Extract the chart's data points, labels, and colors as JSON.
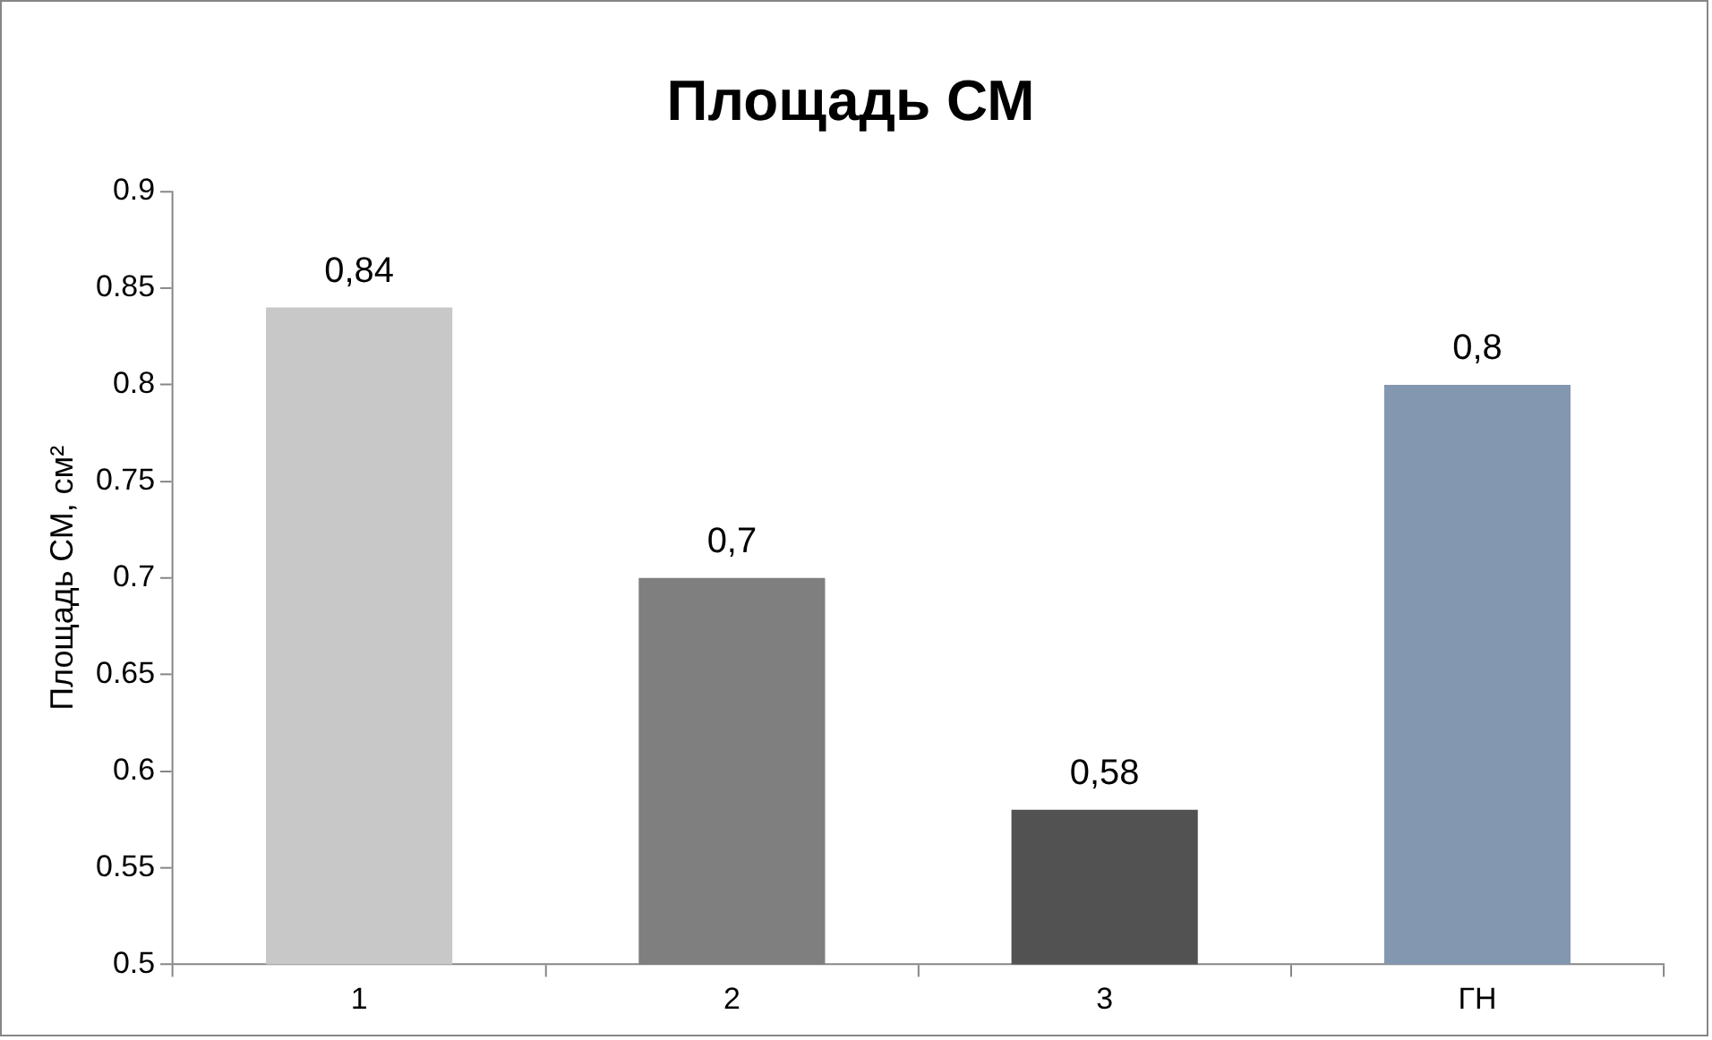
{
  "chart_data": {
    "type": "bar",
    "title": "Площадь СМ",
    "ylabel": "Площадь СМ, см²",
    "categories": [
      "1",
      "2",
      "3",
      "ГН"
    ],
    "values": [
      0.84,
      0.7,
      0.58,
      0.8
    ],
    "colors": [
      "#c8c8c8",
      "#7f7f7f",
      "#525252",
      "#8497b0"
    ],
    "value_labels": [
      "0,84",
      "0,7",
      "0,58",
      "0,8"
    ],
    "ylim": [
      0.5,
      0.9
    ],
    "yticks": [
      0.5,
      0.55,
      0.6,
      0.65,
      0.7,
      0.75,
      0.8,
      0.85,
      0.9
    ],
    "grid": false,
    "legend": false
  }
}
